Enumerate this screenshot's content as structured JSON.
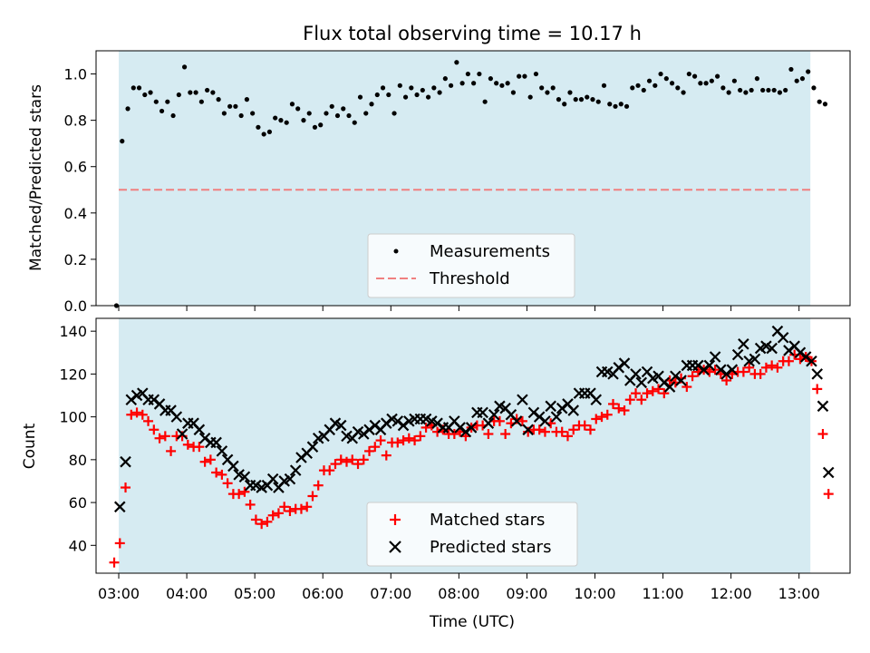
{
  "title": "Flux total observing time = 10.17 h",
  "colors": {
    "background_band": "#add8e6",
    "measurement": "#000000",
    "threshold": "#f08080",
    "matched": "#ff0000",
    "predicted": "#000000"
  },
  "chart_data": [
    {
      "type": "scatter",
      "ylabel": "Matched/Predicted stars",
      "ylim": [
        0.0,
        1.1
      ],
      "yticks": [
        0.0,
        0.2,
        0.4,
        0.6,
        0.8,
        1.0
      ],
      "ytick_labels": [
        "0.0",
        "0.2",
        "0.4",
        "0.6",
        "0.8",
        "1.0"
      ],
      "observing_window": [
        "03:00",
        "13:10"
      ],
      "legend": {
        "placement": "lower-center",
        "entries": [
          "Measurements",
          "Threshold"
        ]
      },
      "threshold": 0.5,
      "series": [
        {
          "name": "Measurements",
          "marker": "dot",
          "x_start": "02:58",
          "x_step_minutes": 5,
          "values": [
            0.0,
            0.71,
            0.85,
            0.94,
            0.94,
            0.91,
            0.92,
            0.88,
            0.84,
            0.88,
            0.82,
            0.91,
            1.03,
            0.92,
            0.92,
            0.88,
            0.93,
            0.92,
            0.89,
            0.83,
            0.86,
            0.86,
            0.82,
            0.89,
            0.83,
            0.77,
            0.74,
            0.75,
            0.81,
            0.8,
            0.79,
            0.87,
            0.85,
            0.8,
            0.83,
            0.77,
            0.78,
            0.83,
            0.86,
            0.82,
            0.85,
            0.82,
            0.79,
            0.9,
            0.83,
            0.87,
            0.91,
            0.94,
            0.91,
            0.83,
            0.95,
            0.9,
            0.94,
            0.91,
            0.93,
            0.9,
            0.94,
            0.92,
            0.98,
            0.95,
            1.05,
            0.96,
            1.0,
            0.96,
            1.0,
            0.88,
            0.98,
            0.96,
            0.95,
            0.96,
            0.92,
            0.99,
            0.99,
            0.9,
            1.0,
            0.94,
            0.92,
            0.94,
            0.89,
            0.87,
            0.92,
            0.89,
            0.89,
            0.9,
            0.89,
            0.88,
            0.95,
            0.87,
            0.86,
            0.87,
            0.86,
            0.94,
            0.95,
            0.93,
            0.97,
            0.95,
            1.0,
            0.98,
            0.96,
            0.94,
            0.92,
            1.0,
            0.99,
            0.96,
            0.96,
            0.97,
            0.99,
            0.94,
            0.92,
            0.97,
            0.93,
            0.92,
            0.93,
            0.98,
            0.93,
            0.93,
            0.93,
            0.92,
            0.93,
            1.02,
            0.97,
            0.98,
            1.01,
            0.94,
            0.88,
            0.87
          ]
        }
      ]
    },
    {
      "type": "scatter",
      "xlabel": "Time (UTC)",
      "ylabel": "Count",
      "ylim": [
        27,
        146
      ],
      "yticks": [
        40,
        60,
        80,
        100,
        120,
        140
      ],
      "ytick_labels": [
        "40",
        "60",
        "80",
        "100",
        "120",
        "140"
      ],
      "xticks": [
        "03:00",
        "04:00",
        "05:00",
        "06:00",
        "07:00",
        "08:00",
        "09:00",
        "10:00",
        "11:00",
        "12:00",
        "13:00"
      ],
      "xlim": [
        "02:40",
        "13:45"
      ],
      "observing_window": [
        "03:00",
        "13:10"
      ],
      "legend": {
        "placement": "lower-center",
        "entries": [
          "Matched stars",
          "Predicted stars"
        ]
      },
      "series": [
        {
          "name": "Matched stars",
          "marker": "plus",
          "x_start": "02:56",
          "x_step_minutes": 5,
          "values": [
            32,
            41,
            67,
            101,
            102,
            101,
            98,
            94,
            90,
            91,
            84,
            91,
            91,
            87,
            86,
            86,
            79,
            80,
            74,
            73,
            69,
            64,
            64,
            65,
            59,
            52,
            50,
            51,
            54,
            55,
            58,
            56,
            57,
            57,
            58,
            63,
            68,
            75,
            75,
            78,
            80,
            79,
            80,
            78,
            80,
            84,
            86,
            89,
            82,
            88,
            88,
            89,
            90,
            89,
            91,
            95,
            96,
            93,
            94,
            92,
            92,
            93,
            91,
            95,
            96,
            96,
            92,
            98,
            98,
            92,
            97,
            99,
            98,
            93,
            94,
            94,
            93,
            97,
            93,
            93,
            91,
            94,
            96,
            96,
            94,
            99,
            100,
            101,
            106,
            104,
            103,
            108,
            111,
            108,
            111,
            112,
            113,
            111,
            117,
            116,
            118,
            114,
            119,
            121,
            122,
            121,
            122,
            120,
            117,
            120,
            121,
            121,
            123,
            120,
            120,
            123,
            124,
            123,
            126,
            126,
            129,
            127,
            128,
            126,
            113,
            92,
            64
          ]
        },
        {
          "name": "Predicted stars",
          "marker": "cross",
          "x_start": "03:01",
          "x_step_minutes": 5,
          "values": [
            58,
            79,
            108,
            110,
            111,
            108,
            108,
            106,
            103,
            103,
            100,
            92,
            97,
            97,
            94,
            90,
            88,
            88,
            84,
            80,
            77,
            73,
            72,
            68,
            68,
            67,
            68,
            71,
            67,
            70,
            71,
            75,
            81,
            83,
            86,
            90,
            91,
            94,
            97,
            96,
            91,
            90,
            93,
            92,
            94,
            96,
            94,
            97,
            99,
            98,
            96,
            98,
            99,
            99,
            99,
            98,
            97,
            95,
            95,
            98,
            95,
            93,
            95,
            102,
            102,
            97,
            101,
            105,
            104,
            101,
            98,
            108,
            94,
            102,
            100,
            98,
            105,
            100,
            104,
            106,
            103,
            111,
            111,
            111,
            108,
            121,
            121,
            120,
            123,
            125,
            117,
            120,
            116,
            121,
            118,
            119,
            116,
            114,
            119,
            117,
            124,
            124,
            124,
            122,
            124,
            128,
            122,
            120,
            122,
            129,
            134,
            126,
            127,
            132,
            133,
            132,
            140,
            137,
            131,
            133,
            130,
            128,
            126,
            120,
            105,
            74
          ]
        }
      ]
    }
  ]
}
